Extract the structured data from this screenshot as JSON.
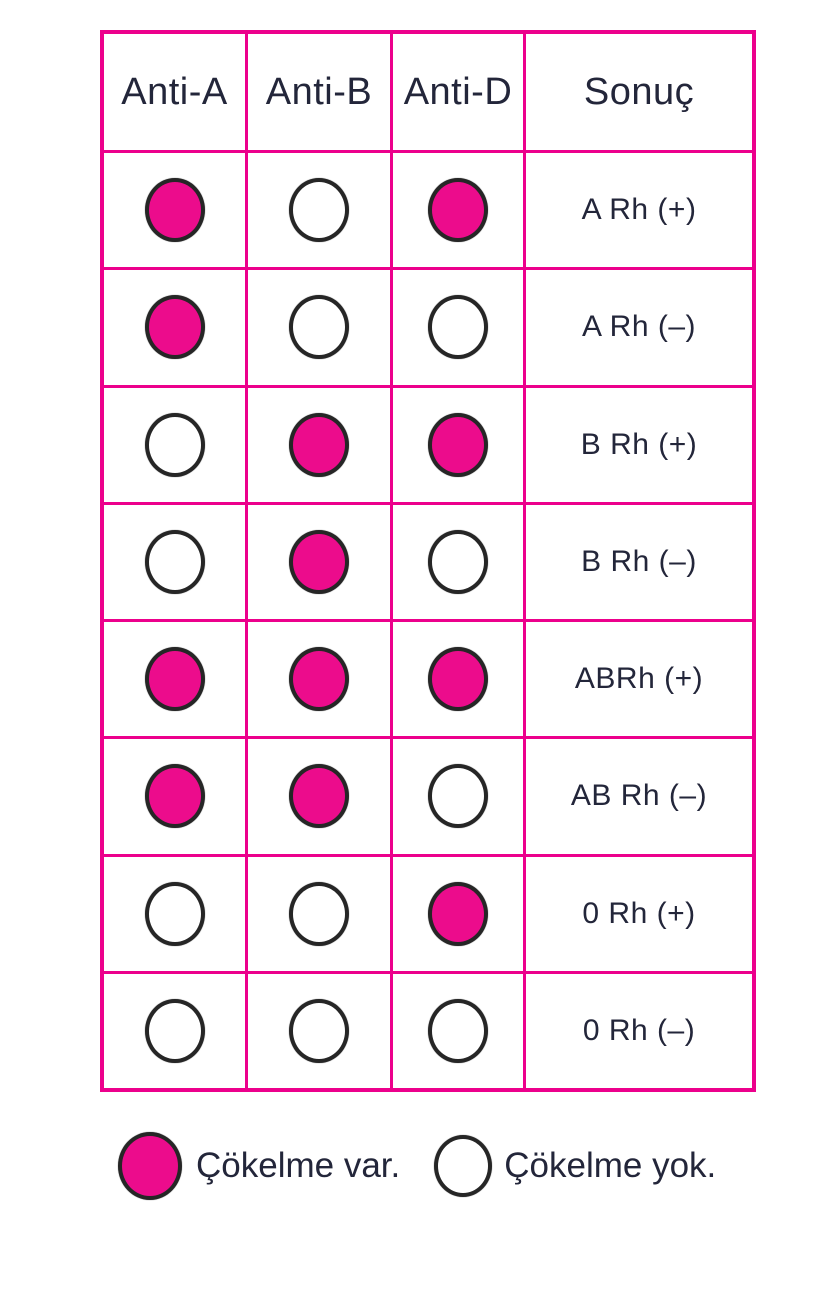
{
  "figure_title": "blood-typing-results-table",
  "chart_data": {
    "type": "table",
    "columns": [
      "Anti-A",
      "Anti-B",
      "Anti-D",
      "Sonuç"
    ],
    "rows": [
      {
        "anti_a": "filled",
        "anti_b": "empty",
        "anti_d": "filled",
        "sonuc": "A Rh (+)"
      },
      {
        "anti_a": "filled",
        "anti_b": "empty",
        "anti_d": "empty",
        "sonuc": "A Rh (–)"
      },
      {
        "anti_a": "empty",
        "anti_b": "filled",
        "anti_d": "filled",
        "sonuc": "B Rh (+)"
      },
      {
        "anti_a": "empty",
        "anti_b": "filled",
        "anti_d": "empty",
        "sonuc": "B Rh (–)"
      },
      {
        "anti_a": "filled",
        "anti_b": "filled",
        "anti_d": "filled",
        "sonuc": "ABRh (+)"
      },
      {
        "anti_a": "filled",
        "anti_b": "filled",
        "anti_d": "empty",
        "sonuc": "AB Rh (–)"
      },
      {
        "anti_a": "empty",
        "anti_b": "empty",
        "anti_d": "filled",
        "sonuc": "0 Rh (+)"
      },
      {
        "anti_a": "empty",
        "anti_b": "empty",
        "anti_d": "empty",
        "sonuc": "0 Rh (–)"
      }
    ],
    "legend": [
      {
        "symbol": "filled-circle",
        "label": "Çökelme var."
      },
      {
        "symbol": "empty-circle",
        "label": "Çökelme yok."
      }
    ],
    "layout": {
      "grid": "on",
      "legend_position": "bottom"
    }
  },
  "colors": {
    "grid_magenta": "#EC008C",
    "circle_fill_magenta": "#EC0C8C",
    "circle_outline": "#262626",
    "text_dark": "#23263A"
  }
}
